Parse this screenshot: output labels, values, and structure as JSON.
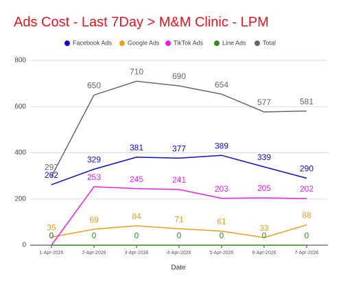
{
  "chart_data": {
    "type": "line",
    "title": "Ads Cost - Last 7Day > M&M Clinic - LPM",
    "x_label": "Date",
    "categories": [
      "1-Apr-2026",
      "2-Apr-2026",
      "3-Apr-2026",
      "4-Apr-2026",
      "5-Apr-2026",
      "6-Apr-2026",
      "7-Apr-2026"
    ],
    "series": [
      {
        "name": "Facebook Ads",
        "color": "#0a0ad0",
        "values": [
          262,
          329,
          381,
          377,
          389,
          339,
          290
        ]
      },
      {
        "name": "Google Ads",
        "color": "#f29d1a",
        "values": [
          35,
          69,
          84,
          71,
          61,
          33,
          88
        ]
      },
      {
        "name": "TikTok Ads",
        "color": "#f01cf0",
        "values": [
          0,
          253,
          245,
          241,
          203,
          205,
          202
        ]
      },
      {
        "name": "Line Ads",
        "color": "#2f8a1f",
        "values": [
          0,
          0,
          0,
          0,
          0,
          0,
          0
        ]
      },
      {
        "name": "Total",
        "color": "#666666",
        "values": [
          297,
          650,
          710,
          690,
          654,
          577,
          581
        ]
      }
    ],
    "ylim": [
      0,
      800
    ],
    "yticks": [
      0,
      200,
      400,
      600,
      800
    ],
    "grid": true,
    "legend": "top"
  }
}
